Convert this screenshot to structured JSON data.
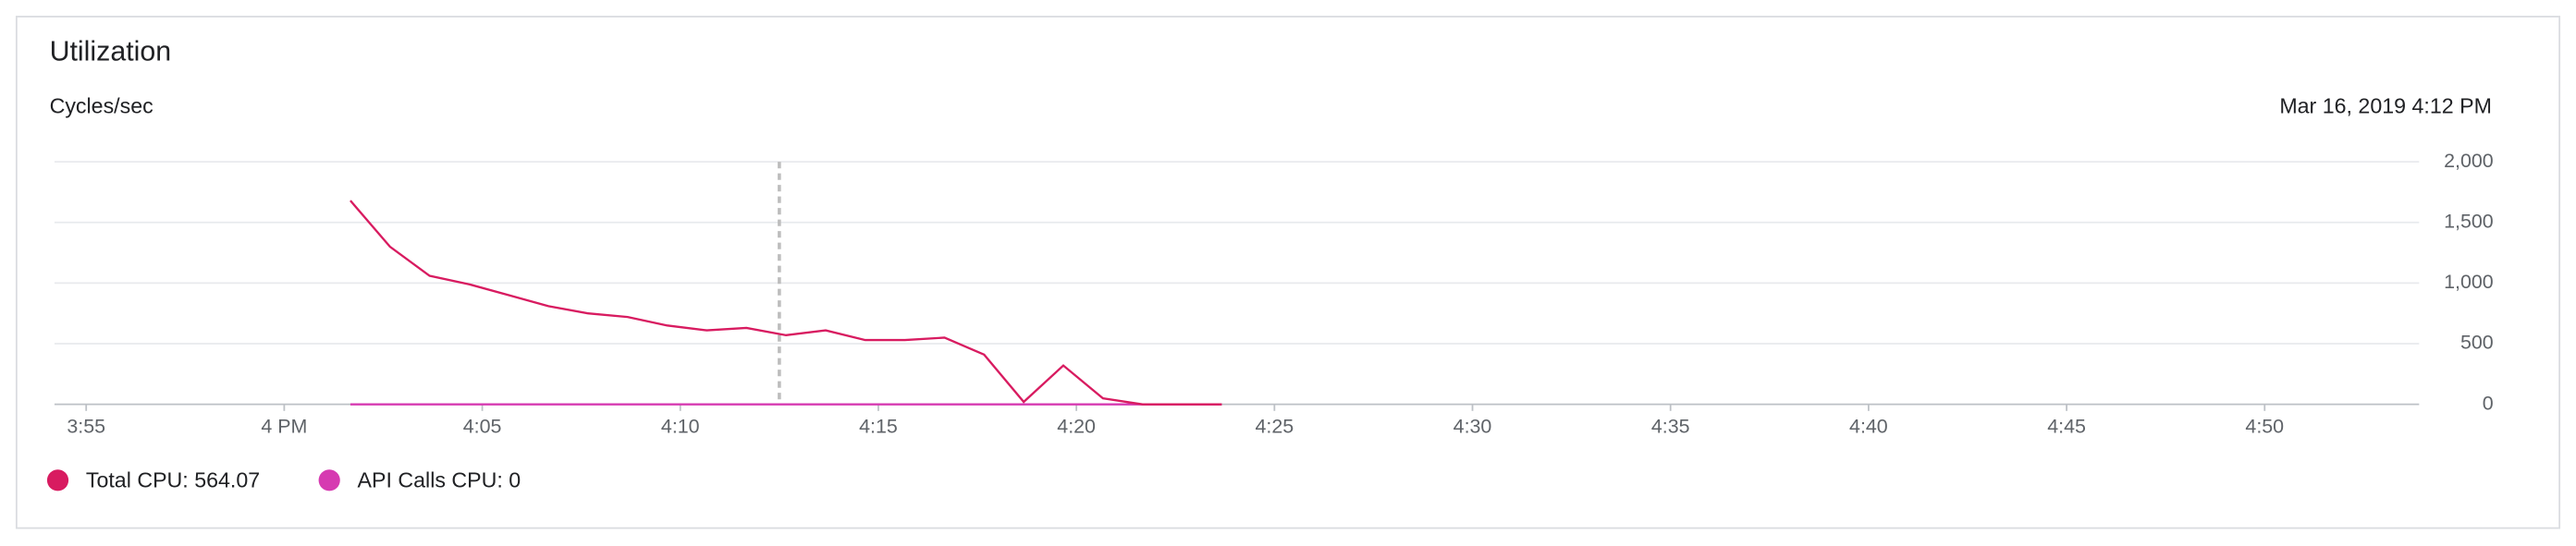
{
  "chart_data": {
    "type": "line",
    "title": "Utilization",
    "y_label": "Cycles/sec",
    "cursor_label": "Mar 16, 2019 4:12 PM",
    "cursor_x": 12.5,
    "xlim": [
      -5.8,
      53.9
    ],
    "xticks": [
      {
        "value": -5,
        "label": "3:55"
      },
      {
        "value": 0,
        "label": "4 PM"
      },
      {
        "value": 5,
        "label": "4:05"
      },
      {
        "value": 10,
        "label": "4:10"
      },
      {
        "value": 15,
        "label": "4:15"
      },
      {
        "value": 20,
        "label": "4:20"
      },
      {
        "value": 25,
        "label": "4:25"
      },
      {
        "value": 30,
        "label": "4:30"
      },
      {
        "value": 35,
        "label": "4:35"
      },
      {
        "value": 40,
        "label": "4:40"
      },
      {
        "value": 45,
        "label": "4:45"
      },
      {
        "value": 50,
        "label": "4:50"
      }
    ],
    "ylim": [
      0,
      2000
    ],
    "yticks": [
      0,
      500,
      {
        "value": 1000,
        "label": "1,000"
      },
      {
        "value": 1500,
        "label": "1,500"
      },
      {
        "value": 2000,
        "label": "2,000"
      }
    ],
    "grid": true,
    "x": [
      1.67,
      2.67,
      3.67,
      4.67,
      5.67,
      6.67,
      7.67,
      8.67,
      9.67,
      10.67,
      11.67,
      12.67,
      13.67,
      14.67,
      15.67,
      16.67,
      17.67,
      18.67,
      19.67,
      20.67,
      21.67,
      22.67,
      23.67
    ],
    "series": [
      {
        "name": "Total CPU: 564.07",
        "color": "#d81b60",
        "values": [
          1680,
          1300,
          1060,
          990,
          900,
          810,
          750,
          720,
          650,
          610,
          630,
          570,
          610,
          530,
          530,
          550,
          410,
          20,
          320,
          50,
          0,
          0,
          0
        ]
      },
      {
        "name": "API Calls CPU: 0",
        "color": "#d63ab1",
        "values": [
          0,
          0,
          0,
          0,
          0,
          0,
          0,
          0,
          0,
          0,
          0,
          0,
          0,
          0,
          0,
          0,
          0,
          0,
          0,
          0,
          0,
          0,
          0
        ]
      }
    ]
  }
}
